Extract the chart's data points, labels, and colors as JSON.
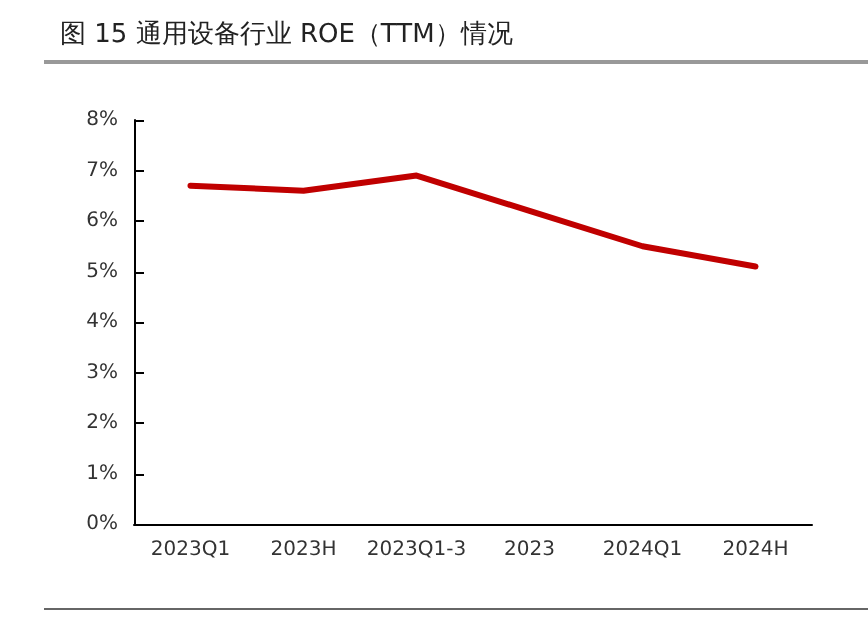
{
  "chart_data": {
    "type": "line",
    "title": "图 15   通用设备行业 ROE（TTM）情况",
    "categories": [
      "2023Q1",
      "2023H",
      "2023Q1-3",
      "2023",
      "2024Q1",
      "2024H"
    ],
    "series": [
      {
        "color": "#c00000",
        "values": [
          6.7,
          6.6,
          6.9,
          6.2,
          5.5,
          5.1
        ]
      }
    ],
    "ylim": [
      0,
      8
    ],
    "yticks": [
      {
        "value": 0,
        "label": "0%"
      },
      {
        "value": 1,
        "label": "1%"
      },
      {
        "value": 2,
        "label": "2%"
      },
      {
        "value": 3,
        "label": "3%"
      },
      {
        "value": 4,
        "label": "4%"
      },
      {
        "value": 5,
        "label": "5%"
      },
      {
        "value": 6,
        "label": "6%"
      },
      {
        "value": 7,
        "label": "7%"
      },
      {
        "value": 8,
        "label": "8%"
      }
    ],
    "grid": false,
    "marker": "none",
    "line_style": "solid"
  }
}
